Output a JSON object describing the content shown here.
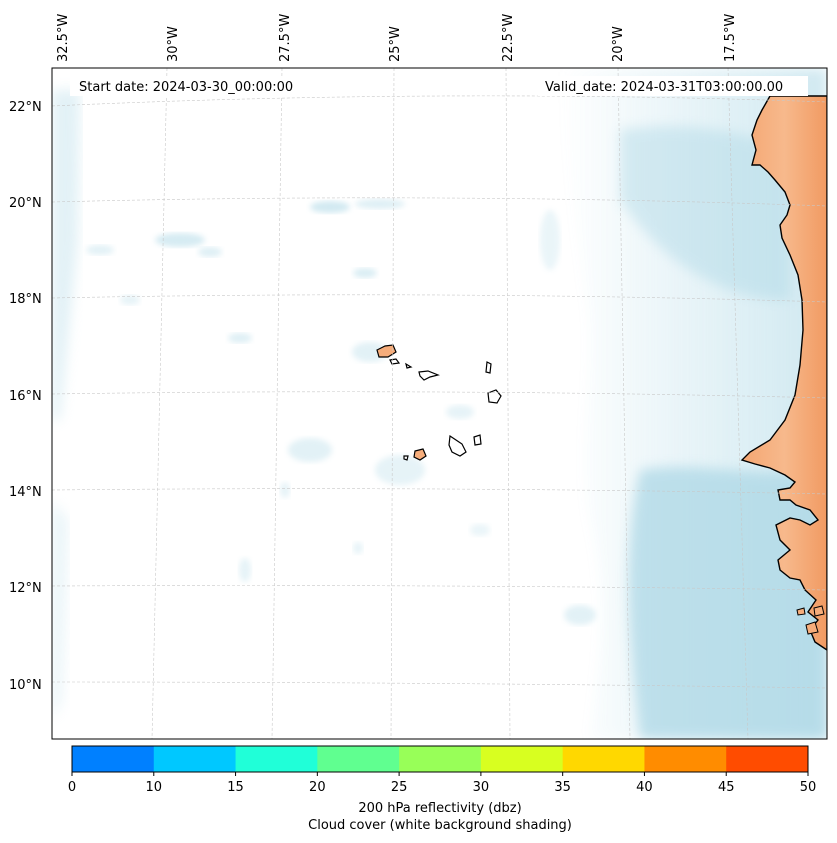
{
  "map": {
    "start_label": "Start date: 2024-03-30_00:00:00",
    "valid_label": "Valid_date: 2024-03-31T03:00:00.00",
    "lon_labels": [
      "32.5°W",
      "30°W",
      "27.5°W",
      "25°W",
      "22.5°W",
      "20°W",
      "17.5°W"
    ],
    "lat_labels": [
      "22°N",
      "20°N",
      "18°N",
      "16°N",
      "14°N",
      "12°N",
      "10°N"
    ],
    "land_color": "#f6ad7b",
    "cloud_color": "#add8e6"
  },
  "colorbar": {
    "ticks": [
      "0",
      "10",
      "15",
      "20",
      "25",
      "30",
      "35",
      "40",
      "45",
      "50"
    ],
    "colors": [
      "#0080ff",
      "#00c8ff",
      "#20ffd8",
      "#60ff90",
      "#98ff58",
      "#d8ff20",
      "#ffd800",
      "#ff8c00",
      "#ff4c00"
    ],
    "label": "200 hPa reflectivity (dbz)",
    "sublabel": "Cloud cover (white background shading)"
  }
}
